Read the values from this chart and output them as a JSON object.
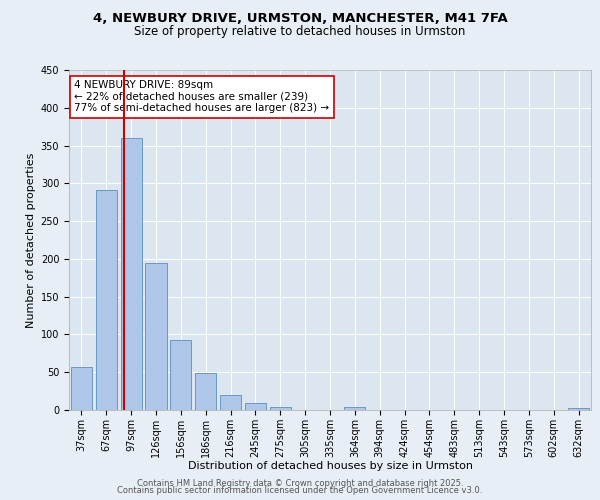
{
  "title1": "4, NEWBURY DRIVE, URMSTON, MANCHESTER, M41 7FA",
  "title2": "Size of property relative to detached houses in Urmston",
  "xlabel": "Distribution of detached houses by size in Urmston",
  "ylabel": "Number of detached properties",
  "categories": [
    "37sqm",
    "67sqm",
    "97sqm",
    "126sqm",
    "156sqm",
    "186sqm",
    "216sqm",
    "245sqm",
    "275sqm",
    "305sqm",
    "335sqm",
    "364sqm",
    "394sqm",
    "424sqm",
    "454sqm",
    "483sqm",
    "513sqm",
    "543sqm",
    "573sqm",
    "602sqm",
    "632sqm"
  ],
  "values": [
    57,
    291,
    360,
    195,
    93,
    49,
    20,
    9,
    4,
    0,
    0,
    4,
    0,
    0,
    0,
    0,
    0,
    0,
    0,
    0,
    3
  ],
  "bar_color": "#aec6e8",
  "bar_edge_color": "#5a8fc0",
  "vline_color": "#cc0000",
  "annotation_text": "4 NEWBURY DRIVE: 89sqm\n← 22% of detached houses are smaller (239)\n77% of semi-detached houses are larger (823) →",
  "annotation_box_color": "#cc0000",
  "ylim": [
    0,
    450
  ],
  "yticks": [
    0,
    50,
    100,
    150,
    200,
    250,
    300,
    350,
    400,
    450
  ],
  "bg_color": "#e8eef5",
  "plot_bg_color": "#dce6f0",
  "grid_color": "#ffffff",
  "footer1": "Contains HM Land Registry data © Crown copyright and database right 2025.",
  "footer2": "Contains public sector information licensed under the Open Government Licence v3.0.",
  "title_fontsize": 9.5,
  "subtitle_fontsize": 8.5,
  "axis_label_fontsize": 8,
  "tick_fontsize": 7,
  "annotation_fontsize": 7.5,
  "footer_fontsize": 6
}
